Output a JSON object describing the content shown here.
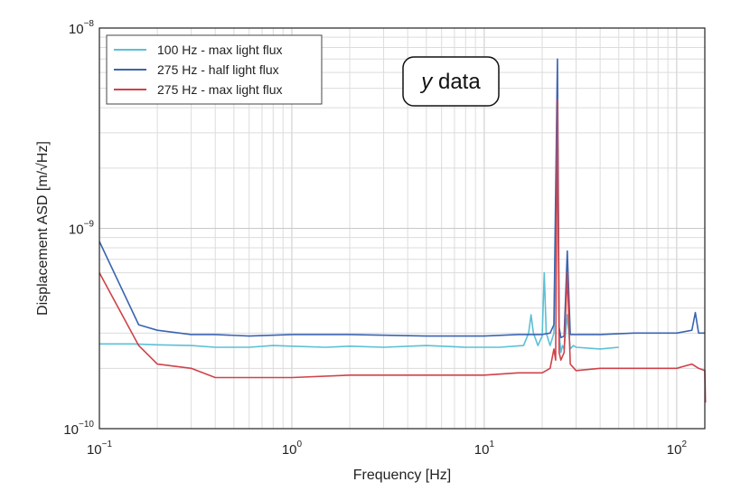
{
  "chart_data": {
    "type": "line",
    "title": "",
    "xlabel": "Frequency [Hz]",
    "ylabel": "Displacement ASD [m/√Hz]",
    "xscale": "log",
    "yscale": "log",
    "xlim": [
      0.1,
      140
    ],
    "ylim": [
      1e-10,
      1e-08
    ],
    "grid": true,
    "legend_position": "top-left",
    "annotation": {
      "italic": "y",
      "text": " data"
    },
    "x_ticks": [
      {
        "value": 0.1,
        "base": "10",
        "exp": "−1"
      },
      {
        "value": 1,
        "base": "10",
        "exp": "0"
      },
      {
        "value": 10,
        "base": "10",
        "exp": "1"
      },
      {
        "value": 100,
        "base": "10",
        "exp": "2"
      }
    ],
    "y_ticks": [
      {
        "value": 1e-10,
        "base": "10",
        "exp": "−10"
      },
      {
        "value": 1e-09,
        "base": "10",
        "exp": "−9"
      },
      {
        "value": 1e-08,
        "base": "10",
        "exp": "−8"
      }
    ],
    "series": [
      {
        "name": "100 Hz - max light flux",
        "color": "#5bc0d6",
        "x": [
          0.1,
          0.15,
          0.2,
          0.3,
          0.4,
          0.6,
          0.8,
          1,
          1.5,
          2,
          3,
          5,
          8,
          12,
          16,
          17,
          17.5,
          18,
          19,
          20,
          20.5,
          21,
          22,
          23,
          24,
          24.5,
          25,
          25.5,
          26,
          27,
          28,
          29,
          30,
          40,
          50
        ],
        "values": [
          2.65e-10,
          2.65e-10,
          2.62e-10,
          2.6e-10,
          2.55e-10,
          2.55e-10,
          2.6e-10,
          2.58e-10,
          2.55e-10,
          2.58e-10,
          2.55e-10,
          2.6e-10,
          2.55e-10,
          2.55e-10,
          2.6e-10,
          3e-10,
          3.7e-10,
          3e-10,
          2.6e-10,
          2.9e-10,
          6e-10,
          3e-10,
          2.6e-10,
          3e-10,
          4.5e-09,
          3e-10,
          2.4e-10,
          2.6e-10,
          2.5e-10,
          3.7e-10,
          2.5e-10,
          2.6e-10,
          2.55e-10,
          2.5e-10,
          2.55e-10
        ]
      },
      {
        "name": "275 Hz - half light flux",
        "color": "#3a64b0",
        "x": [
          0.1,
          0.16,
          0.2,
          0.3,
          0.4,
          0.6,
          1,
          2,
          5,
          10,
          15,
          20,
          22,
          23,
          24,
          24.5,
          25,
          26,
          27,
          28,
          30,
          40,
          60,
          100,
          120,
          125,
          130,
          140
        ],
        "values": [
          8.6e-10,
          3.3e-10,
          3.1e-10,
          2.95e-10,
          2.95e-10,
          2.9e-10,
          2.95e-10,
          2.95e-10,
          2.9e-10,
          2.9e-10,
          2.95e-10,
          2.95e-10,
          3e-10,
          3.3e-10,
          7e-09,
          3.2e-10,
          2.85e-10,
          2.9e-10,
          7.7e-10,
          2.95e-10,
          2.95e-10,
          2.95e-10,
          3e-10,
          3e-10,
          3.1e-10,
          3.8e-10,
          3e-10,
          3e-10
        ]
      },
      {
        "name": "275 Hz - max light flux",
        "color": "#d0424a",
        "x": [
          0.1,
          0.16,
          0.2,
          0.3,
          0.4,
          0.6,
          1,
          2,
          5,
          10,
          15,
          20,
          22,
          23,
          23.5,
          24,
          24.5,
          25,
          26,
          27,
          28,
          30,
          40,
          60,
          100,
          120,
          130,
          140,
          141
        ],
        "values": [
          6e-10,
          2.6e-10,
          2.1e-10,
          2e-10,
          1.8e-10,
          1.8e-10,
          1.8e-10,
          1.85e-10,
          1.85e-10,
          1.85e-10,
          1.9e-10,
          1.9e-10,
          2e-10,
          2.5e-10,
          2.2e-10,
          4.4e-09,
          2.4e-10,
          2.2e-10,
          2.4e-10,
          6e-10,
          2.1e-10,
          1.95e-10,
          2e-10,
          2e-10,
          2e-10,
          2.1e-10,
          2e-10,
          1.95e-10,
          1.35e-10
        ]
      }
    ]
  }
}
